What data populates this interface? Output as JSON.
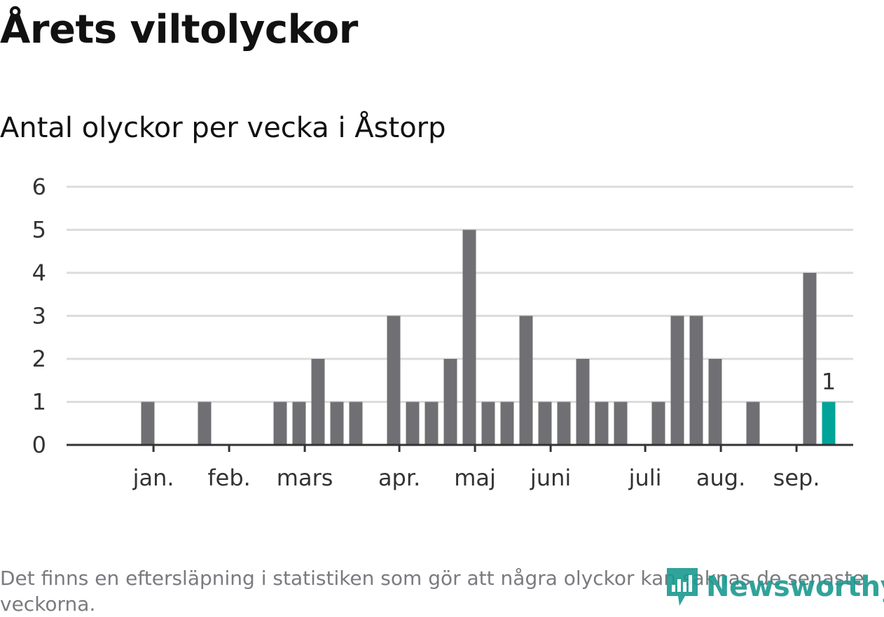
{
  "header": {
    "title": "Årets viltolyckor",
    "subtitle": "Antal olyckor per vecka i Åstorp"
  },
  "footer": {
    "note": "Det finns en eftersläpning i statistiken som gör att några olyckor kan saknas de senaste veckorna.",
    "logo_text": "Newsworthy"
  },
  "colors": {
    "bar": "#707074",
    "highlight": "#00a398",
    "grid": "#dcdcdc",
    "axis": "#333333"
  },
  "chart_data": {
    "type": "bar",
    "title": "Antal olyckor per vecka i Åstorp",
    "xlabel": "",
    "ylabel": "",
    "ylim": [
      0,
      6
    ],
    "yticks": [
      0,
      1,
      2,
      3,
      4,
      5,
      6
    ],
    "grid": true,
    "weeks": [
      1,
      2,
      3,
      4,
      5,
      6,
      7,
      8,
      9,
      10,
      11,
      12,
      13,
      14,
      15,
      16,
      17,
      18,
      19,
      20,
      21,
      22,
      23,
      24,
      25,
      26,
      27,
      28,
      29,
      30,
      31,
      32,
      33,
      34,
      35,
      36,
      37,
      38,
      39,
      40,
      41
    ],
    "values": [
      0,
      0,
      1,
      0,
      0,
      1,
      0,
      0,
      0,
      1,
      1,
      2,
      1,
      1,
      0,
      3,
      1,
      1,
      2,
      5,
      1,
      1,
      3,
      1,
      1,
      2,
      1,
      1,
      0,
      1,
      3,
      3,
      2,
      0,
      1,
      0,
      0,
      4,
      1,
      0,
      0
    ],
    "highlight_index": 38,
    "highlight_label": "1",
    "month_labels": [
      {
        "label": "jan.",
        "week": 3.3
      },
      {
        "label": "feb.",
        "week": 7.3
      },
      {
        "label": "mars",
        "week": 11.3
      },
      {
        "label": "apr.",
        "week": 16.3
      },
      {
        "label": "maj",
        "week": 20.3
      },
      {
        "label": "juni",
        "week": 24.3
      },
      {
        "label": "juli",
        "week": 29.3
      },
      {
        "label": "aug.",
        "week": 33.3
      },
      {
        "label": "sep.",
        "week": 37.3
      }
    ]
  }
}
